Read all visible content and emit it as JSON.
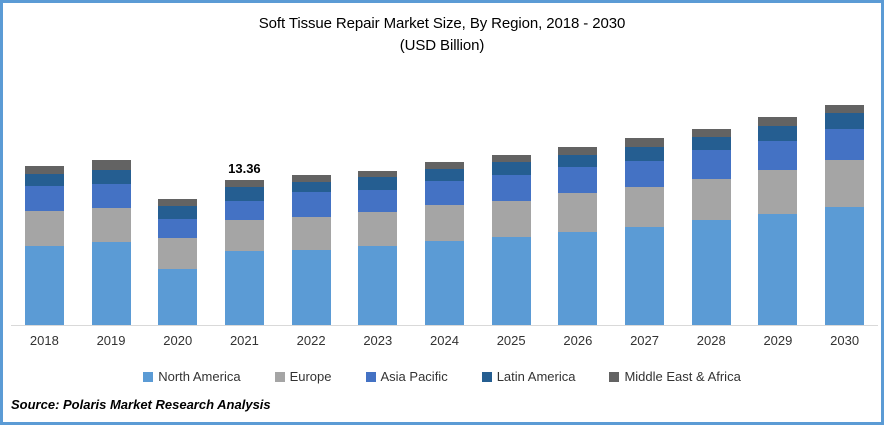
{
  "title": {
    "line1": "Soft Tissue Repair Market Size, By Region, 2018 - 2030",
    "line2": "(USD Billion)"
  },
  "source_note": "Source: Polaris Market Research Analysis",
  "frame_color": "#5B9BD5",
  "axis_line_color": "#d9d9d9",
  "chart_data": {
    "type": "bar",
    "stacked": true,
    "title": "Soft Tissue Repair Market Size, By Region, 2018 - 2030",
    "subtitle": "(USD Billion)",
    "unit": "USD Billion",
    "grid": false,
    "legend_position": "bottom",
    "ylim": [
      0,
      21
    ],
    "categories": [
      "2018",
      "2019",
      "2020",
      "2021",
      "2022",
      "2023",
      "2024",
      "2025",
      "2026",
      "2027",
      "2028",
      "2029",
      "2030"
    ],
    "series": [
      {
        "name": "North America",
        "color": "#5B9BD5",
        "values": [
          7.24,
          7.65,
          5.21,
          6.82,
          6.94,
          7.32,
          7.77,
          8.08,
          8.61,
          9.07,
          9.71,
          10.23,
          10.87
        ]
      },
      {
        "name": "Europe",
        "color": "#A5A5A5",
        "values": [
          3.26,
          3.16,
          2.86,
          2.86,
          3.06,
          3.13,
          3.29,
          3.38,
          3.53,
          3.62,
          3.74,
          4.05,
          4.29
        ]
      },
      {
        "name": "Asia Pacific",
        "color": "#4472C4",
        "values": [
          2.3,
          2.15,
          1.75,
          1.75,
          2.24,
          2.03,
          2.24,
          2.37,
          2.4,
          2.46,
          2.67,
          2.71,
          2.92
        ]
      },
      {
        "name": "Latin America",
        "color": "#255E91",
        "values": [
          1.13,
          1.29,
          1.14,
          1.25,
          0.92,
          1.13,
          1.08,
          1.17,
          1.13,
          1.23,
          1.23,
          1.32,
          1.47
        ]
      },
      {
        "name": "Middle East & Africa",
        "color": "#636363",
        "values": [
          0.71,
          0.96,
          0.7,
          0.68,
          0.7,
          0.62,
          0.62,
          0.67,
          0.71,
          0.83,
          0.76,
          0.83,
          0.71
        ]
      }
    ],
    "totals": [
      14.64,
      15.21,
      11.66,
      13.36,
      13.86,
      14.23,
      15.0,
      15.67,
      16.38,
      17.21,
      18.11,
      19.14,
      20.26
    ],
    "annotations": [
      {
        "category": "2021",
        "label": "13.36"
      }
    ]
  }
}
